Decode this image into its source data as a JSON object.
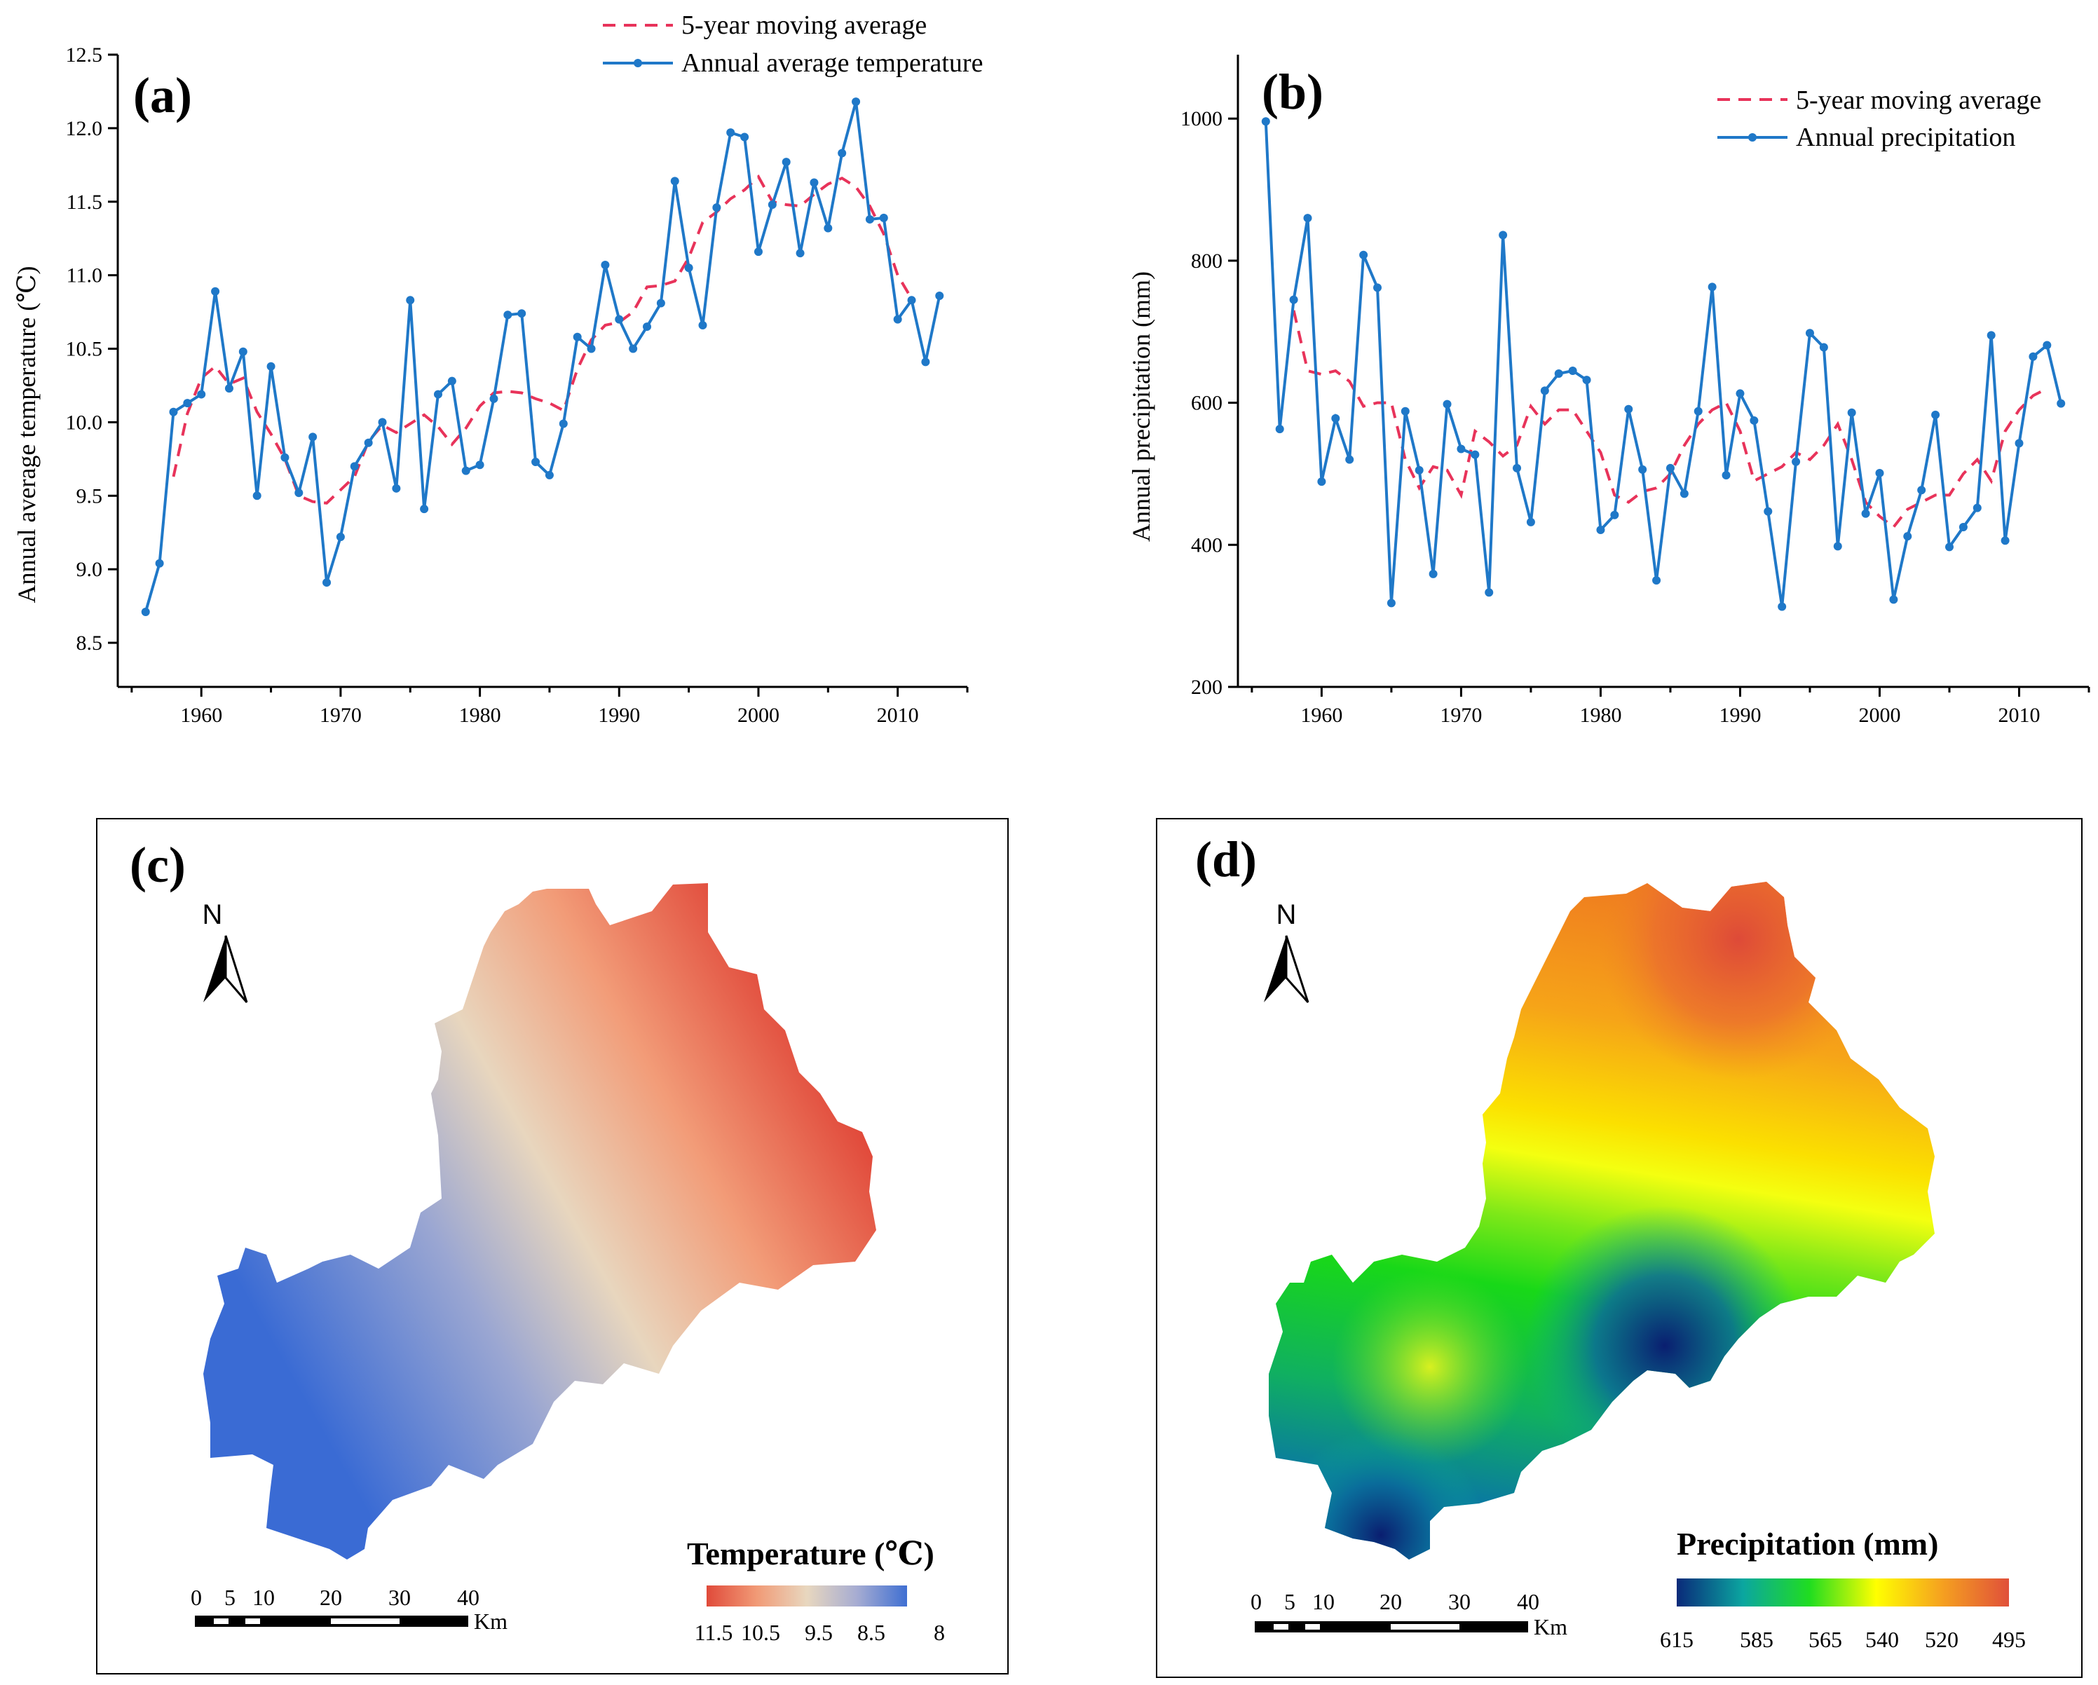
{
  "colors": {
    "axis": "#000000",
    "series_line": "#1f78c8",
    "moving_avg": "#e8335a",
    "map_border": "#000000"
  },
  "chart_data": [
    {
      "id": "a",
      "type": "line",
      "panel_label": "(a)",
      "ylabel": "Annual average temperature (℃)",
      "xlabel": "",
      "xlim": [
        1954,
        2015
      ],
      "ylim": [
        8.2,
        12.5
      ],
      "xticks": [
        1960,
        1970,
        1980,
        1990,
        2000,
        2010
      ],
      "yticks": [
        8.5,
        9.0,
        9.5,
        10.0,
        10.5,
        11.0,
        11.5,
        12.0,
        12.5
      ],
      "ytick_labels": [
        "8.5",
        "9.0",
        "9.5",
        "10.0",
        "10.5",
        "11.0",
        "11.5",
        "12.0",
        "12.5"
      ],
      "legend": [
        "5-year moving average",
        "Annual average temperature"
      ],
      "series": [
        {
          "name": "Annual average temperature",
          "style": "line-markers",
          "x": [
            1956,
            1957,
            1958,
            1959,
            1960,
            1961,
            1962,
            1963,
            1964,
            1965,
            1966,
            1967,
            1968,
            1969,
            1970,
            1971,
            1972,
            1973,
            1974,
            1975,
            1976,
            1977,
            1978,
            1979,
            1980,
            1981,
            1982,
            1983,
            1984,
            1985,
            1986,
            1987,
            1988,
            1989,
            1990,
            1991,
            1992,
            1993,
            1994,
            1995,
            1996,
            1997,
            1998,
            1999,
            2000,
            2001,
            2002,
            2003,
            2004,
            2005,
            2006,
            2007,
            2008,
            2009,
            2010,
            2011,
            2012,
            2013
          ],
          "values": [
            8.71,
            9.04,
            10.07,
            10.13,
            10.19,
            10.89,
            10.23,
            10.48,
            9.5,
            10.38,
            9.76,
            9.52,
            9.9,
            8.91,
            9.22,
            9.7,
            9.86,
            10.0,
            9.55,
            10.83,
            9.41,
            10.19,
            10.28,
            9.67,
            9.71,
            10.16,
            10.73,
            10.74,
            9.73,
            9.64,
            9.99,
            10.58,
            10.5,
            11.07,
            10.7,
            10.5,
            10.65,
            10.81,
            11.64,
            11.05,
            10.66,
            11.46,
            11.97,
            11.94,
            11.16,
            11.48,
            11.77,
            11.15,
            11.63,
            11.32,
            11.83,
            12.18,
            11.38,
            11.39,
            10.7,
            10.83,
            10.41,
            10.86
          ]
        },
        {
          "name": "5-year moving average",
          "style": "dashed",
          "x": [
            1958,
            1959,
            1960,
            1961,
            1962,
            1963,
            1964,
            1965,
            1966,
            1967,
            1968,
            1969,
            1970,
            1971,
            1972,
            1973,
            1974,
            1975,
            1976,
            1977,
            1978,
            1979,
            1980,
            1981,
            1982,
            1983,
            1984,
            1985,
            1986,
            1987,
            1988,
            1989,
            1990,
            1991,
            1992,
            1993,
            1994,
            1995,
            1996,
            1997,
            1998,
            1999,
            2000,
            2001,
            2002,
            2003,
            2004,
            2005,
            2006,
            2007,
            2008,
            2009,
            2010,
            2011
          ],
          "values": [
            9.63,
            10.06,
            10.3,
            10.38,
            10.26,
            10.3,
            10.07,
            9.92,
            9.75,
            9.5,
            9.46,
            9.45,
            9.54,
            9.63,
            9.87,
            9.98,
            9.93,
            9.99,
            10.05,
            9.97,
            9.85,
            9.96,
            10.11,
            10.2,
            10.21,
            10.2,
            10.16,
            10.13,
            10.08,
            10.36,
            10.56,
            10.66,
            10.68,
            10.75,
            10.92,
            10.93,
            10.96,
            11.12,
            11.36,
            11.43,
            11.52,
            11.58,
            11.67,
            11.5,
            11.48,
            11.47,
            11.55,
            11.62,
            11.66,
            11.6,
            11.47,
            11.28,
            11.0,
            10.84
          ]
        }
      ]
    },
    {
      "id": "b",
      "type": "line",
      "panel_label": "(b)",
      "ylabel": "Annual precipitation (mm)",
      "xlabel": "",
      "xlim": [
        1954,
        2015
      ],
      "ylim": [
        200,
        1090
      ],
      "xticks": [
        1960,
        1970,
        1980,
        1990,
        2000,
        2010
      ],
      "yticks": [
        200,
        400,
        600,
        800,
        1000
      ],
      "ytick_labels": [
        "200",
        "400",
        "600",
        "800",
        "1000"
      ],
      "legend": [
        "5-year moving average",
        "Annual precipitation"
      ],
      "series": [
        {
          "name": "Annual precipitation",
          "style": "line-markers",
          "x": [
            1956,
            1957,
            1958,
            1959,
            1960,
            1961,
            1962,
            1963,
            1964,
            1965,
            1966,
            1967,
            1968,
            1969,
            1970,
            1971,
            1972,
            1973,
            1974,
            1975,
            1976,
            1977,
            1978,
            1979,
            1980,
            1981,
            1982,
            1983,
            1984,
            1985,
            1986,
            1987,
            1988,
            1989,
            1990,
            1991,
            1992,
            1993,
            1994,
            1995,
            1996,
            1997,
            1998,
            1999,
            2000,
            2001,
            2002,
            2003,
            2004,
            2005,
            2006,
            2007,
            2008,
            2009,
            2010,
            2011,
            2012,
            2013
          ],
          "values": [
            996,
            563,
            745,
            860,
            489,
            578,
            520,
            808,
            762,
            318,
            588,
            505,
            359,
            598,
            535,
            527,
            333,
            836,
            508,
            432,
            617,
            641,
            645,
            632,
            421,
            442,
            591,
            506,
            350,
            508,
            472,
            588,
            763,
            498,
            613,
            575,
            447,
            313,
            517,
            698,
            678,
            398,
            586,
            444,
            501,
            323,
            412,
            477,
            583,
            397,
            425,
            452,
            695,
            406,
            543,
            665,
            681,
            599
          ]
        },
        {
          "name": "5-year moving average",
          "style": "dashed",
          "x": [
            1958,
            1959,
            1960,
            1961,
            1962,
            1963,
            1964,
            1965,
            1966,
            1967,
            1968,
            1969,
            1970,
            1971,
            1972,
            1973,
            1974,
            1975,
            1976,
            1977,
            1978,
            1979,
            1980,
            1981,
            1982,
            1983,
            1984,
            1985,
            1986,
            1987,
            1988,
            1989,
            1990,
            1991,
            1992,
            1993,
            1994,
            1995,
            1996,
            1997,
            1998,
            1999,
            2000,
            2001,
            2002,
            2003,
            2004,
            2005,
            2006,
            2007,
            2008,
            2009,
            2010,
            2011,
            2012
          ],
          "values": [
            730,
            645,
            640,
            645,
            630,
            595,
            600,
            600,
            520,
            480,
            510,
            505,
            470,
            560,
            545,
            525,
            540,
            595,
            570,
            590,
            590,
            560,
            530,
            470,
            460,
            475,
            480,
            500,
            540,
            570,
            590,
            600,
            560,
            490,
            500,
            510,
            530,
            520,
            540,
            570,
            520,
            460,
            440,
            425,
            450,
            460,
            470,
            470,
            500,
            520,
            490,
            560,
            590,
            610,
            620
          ]
        }
      ]
    }
  ],
  "maps": [
    {
      "id": "c",
      "panel_label": "(c)",
      "north_label": "N",
      "scalebar_ticks": [
        "0",
        "5",
        "10",
        "20",
        "30",
        "40"
      ],
      "scalebar_unit": "Km",
      "legend_title": "Temperature (℃)",
      "legend_ticks": [
        "11.5",
        "10.5",
        "9.5",
        "8.5",
        "8"
      ],
      "legend_range": [
        11.5,
        8
      ],
      "color_ramp": [
        "#e04a3a",
        "#f19a76",
        "#e8d7bf",
        "#a6acd2",
        "#3f6fd2"
      ]
    },
    {
      "id": "d",
      "panel_label": "(d)",
      "north_label": "N",
      "scalebar_ticks": [
        "0",
        "5",
        "10",
        "20",
        "30",
        "40"
      ],
      "scalebar_unit": "Km",
      "legend_title": "Precipitation (mm)",
      "legend_ticks": [
        "615",
        "585",
        "565",
        "540",
        "520",
        "495"
      ],
      "legend_range": [
        615,
        495
      ],
      "color_ramp": [
        "#0a2a7a",
        "#0ba6a0",
        "#20dd20",
        "#ffff00",
        "#f5a020",
        "#e0503a"
      ]
    }
  ]
}
